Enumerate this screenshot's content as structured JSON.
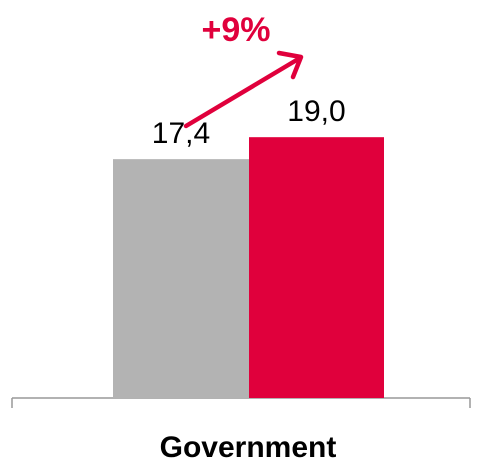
{
  "chart_data": {
    "type": "bar",
    "categories": [
      "Government"
    ],
    "series": [
      {
        "values": [
          17.4
        ],
        "color": "#b3b3b3"
      },
      {
        "values": [
          19.0
        ],
        "color": "#e0003c"
      }
    ],
    "data_labels": [
      "17,4",
      "19,0"
    ],
    "annotation": {
      "text": "+9%",
      "color": "#e0003c",
      "icon": "up-right-arrow-icon"
    },
    "axis_color": "#999999",
    "ylim": [
      0,
      22
    ],
    "grid": false
  }
}
